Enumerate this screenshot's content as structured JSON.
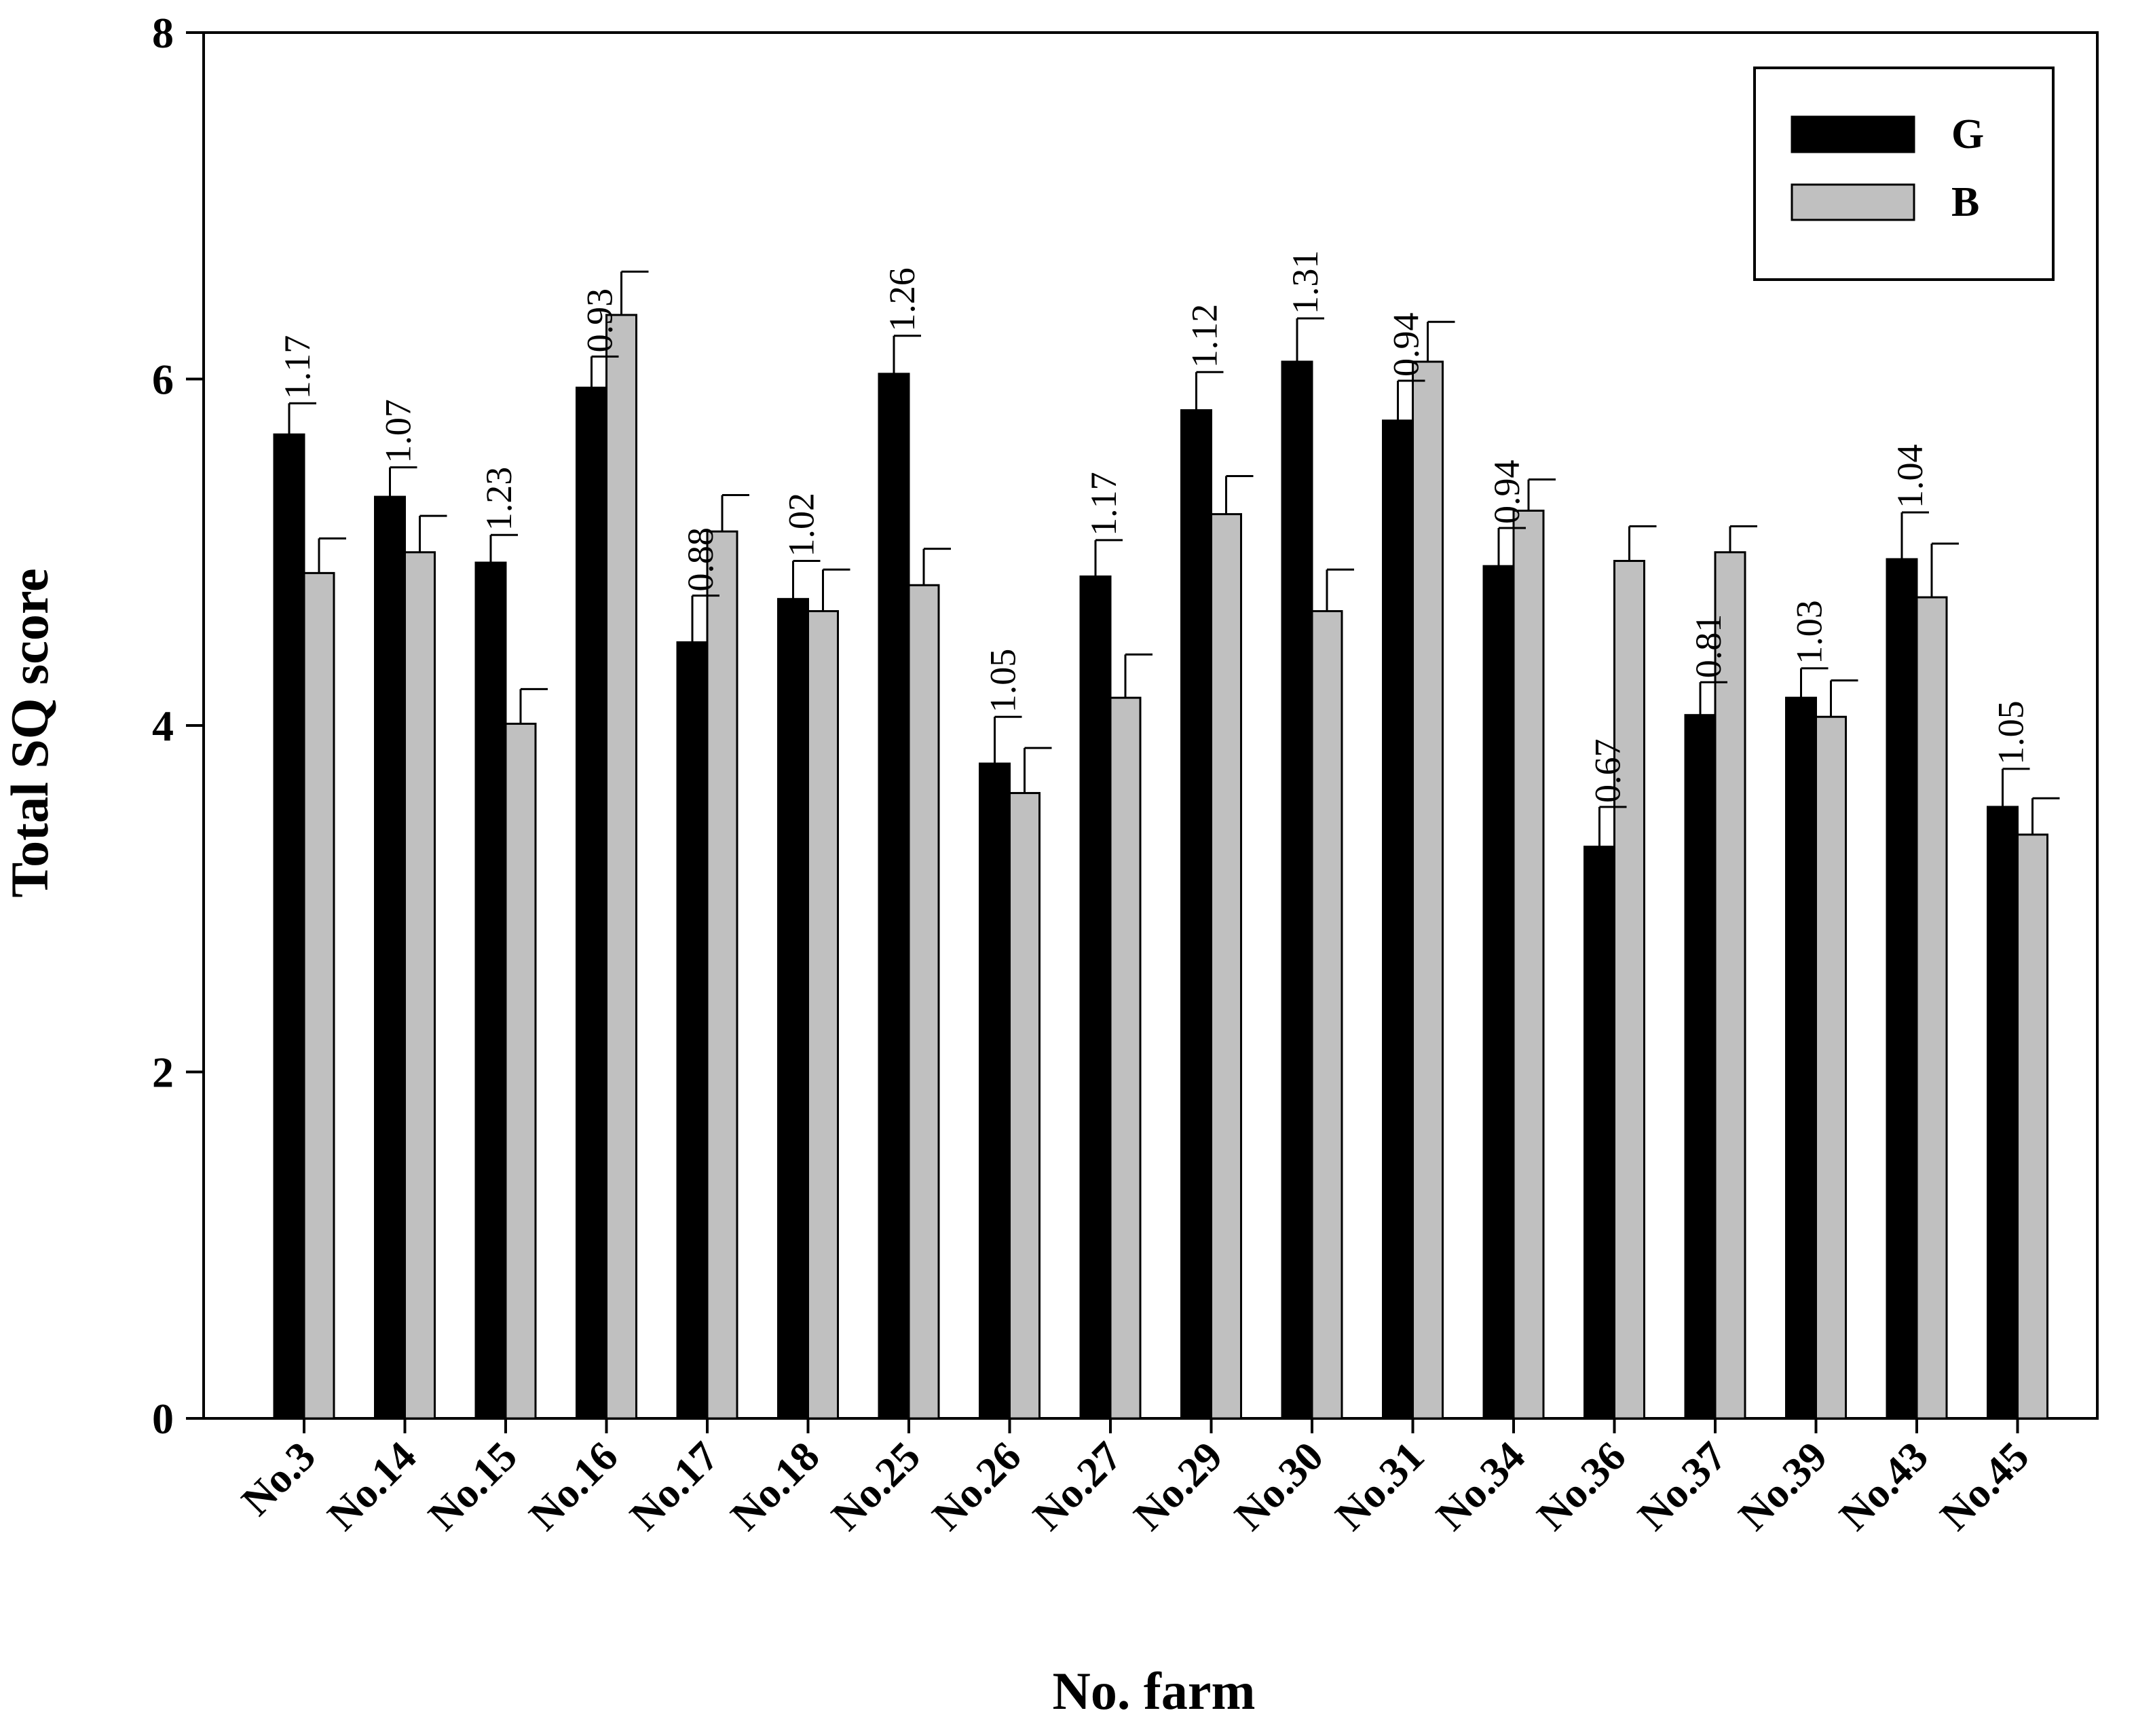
{
  "chart_data": {
    "type": "bar",
    "xlabel": "No. farm",
    "ylabel": "Total SQ score",
    "ylim": [
      0,
      8
    ],
    "yticks": [
      0,
      2,
      4,
      6,
      8
    ],
    "grid": false,
    "legend_position": "top-right",
    "categories": [
      "No.3",
      "No.14",
      "No.15",
      "No.16",
      "No.17",
      "No.18",
      "No.25",
      "No.26",
      "No.27",
      "No.29",
      "No.30",
      "No.31",
      "No.34",
      "No.36",
      "No.37",
      "No.39",
      "No.43",
      "No.45"
    ],
    "series": [
      {
        "name": "G",
        "color": "#000000",
        "values": [
          5.68,
          5.32,
          4.94,
          5.95,
          4.48,
          4.73,
          6.03,
          3.78,
          4.86,
          5.82,
          6.1,
          5.76,
          4.92,
          3.3,
          4.06,
          4.16,
          4.96,
          3.53
        ],
        "errors": [
          0.18,
          0.17,
          0.16,
          0.18,
          0.27,
          0.22,
          0.22,
          0.27,
          0.21,
          0.22,
          0.25,
          0.23,
          0.22,
          0.23,
          0.19,
          0.17,
          0.27,
          0.22
        ]
      },
      {
        "name": "B",
        "color": "#c0c0c0",
        "values": [
          4.88,
          5.0,
          4.01,
          6.37,
          5.12,
          4.66,
          4.81,
          3.61,
          4.16,
          5.22,
          4.66,
          6.1,
          5.24,
          4.95,
          5.0,
          4.05,
          4.74,
          3.37
        ],
        "errors": [
          0.2,
          0.21,
          0.2,
          0.25,
          0.21,
          0.24,
          0.21,
          0.26,
          0.25,
          0.22,
          0.24,
          0.23,
          0.18,
          0.2,
          0.15,
          0.21,
          0.31,
          0.21
        ]
      }
    ],
    "annotations": [
      "1.17",
      "1.07",
      "1.23",
      "0.93",
      "0.88",
      "1.02",
      "1.26",
      "1.05",
      "1.17",
      "1.12",
      "1.31",
      "0.94",
      "0.94",
      "0.67",
      "0.81",
      "1.03",
      "1.04",
      "1.05"
    ]
  }
}
